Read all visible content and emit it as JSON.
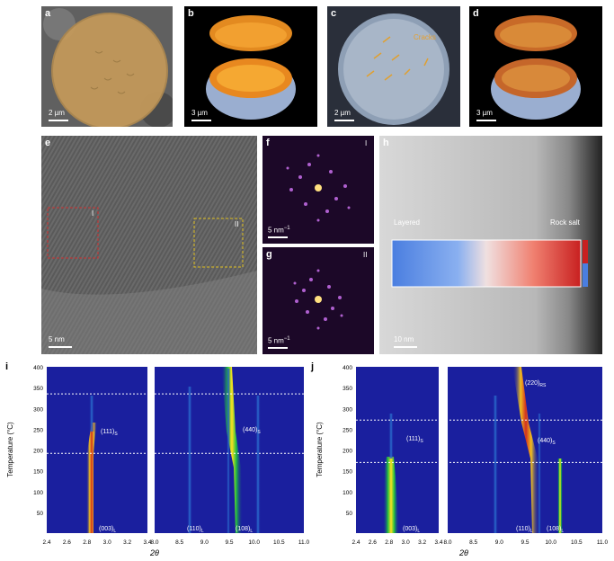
{
  "panels": {
    "a": {
      "label": "a",
      "scale": "2 µm"
    },
    "b": {
      "label": "b",
      "scale": "3 µm"
    },
    "c": {
      "label": "c",
      "scale": "2 µm",
      "annotation": "Cracks"
    },
    "d": {
      "label": "d",
      "scale": "3 µm"
    },
    "e": {
      "label": "e",
      "scale": "5 nm",
      "region1": "I",
      "region2": "II"
    },
    "f": {
      "label": "f",
      "scale": "5 nm",
      "scale_sup": "−1",
      "region": "I"
    },
    "g": {
      "label": "g",
      "scale": "5 nm",
      "scale_sup": "−1",
      "region": "II"
    },
    "h": {
      "label": "h",
      "scale": "10 nm",
      "left_text": "Layered",
      "right_text": "Rock salt"
    },
    "i": {
      "label": "i"
    },
    "j": {
      "label": "j"
    }
  },
  "xrd": {
    "ylabel": "Temperature (°C)",
    "xlabel": "2θ",
    "yticks": [
      "400",
      "350",
      "300",
      "250",
      "200",
      "150",
      "100",
      "50"
    ],
    "xticks_left": [
      "2.4",
      "2.6",
      "2.8",
      "3.0",
      "3.2",
      "3.4"
    ],
    "xticks_right": [
      "8.0",
      "8.5",
      "9.0",
      "9.5",
      "10.0",
      "10.5",
      "11.0"
    ],
    "i_labels": {
      "p003": "(003)",
      "p003_sub": "L",
      "p111": "(111)",
      "p111_sub": "S",
      "p110": "(110)",
      "p110_sub": "L",
      "p108": "(108)",
      "p108_sub": "L",
      "p440": "(440)",
      "p440_sub": "S"
    },
    "j_labels": {
      "p003": "(003)",
      "p003_sub": "L",
      "p111": "(111)",
      "p111_sub": "S",
      "p110": "(110)",
      "p110_sub": "L",
      "p108": "(108)",
      "p108_sub": "L",
      "p440": "(440)",
      "p440_sub": "S",
      "p220": "(220)",
      "p220_sub": "RS"
    },
    "dashed_i": [
      335,
      192
    ],
    "dashed_j": [
      272,
      170
    ],
    "colors": {
      "background": "#1a1f9e",
      "peak": "#e8e020",
      "core": "#d0402a"
    }
  }
}
